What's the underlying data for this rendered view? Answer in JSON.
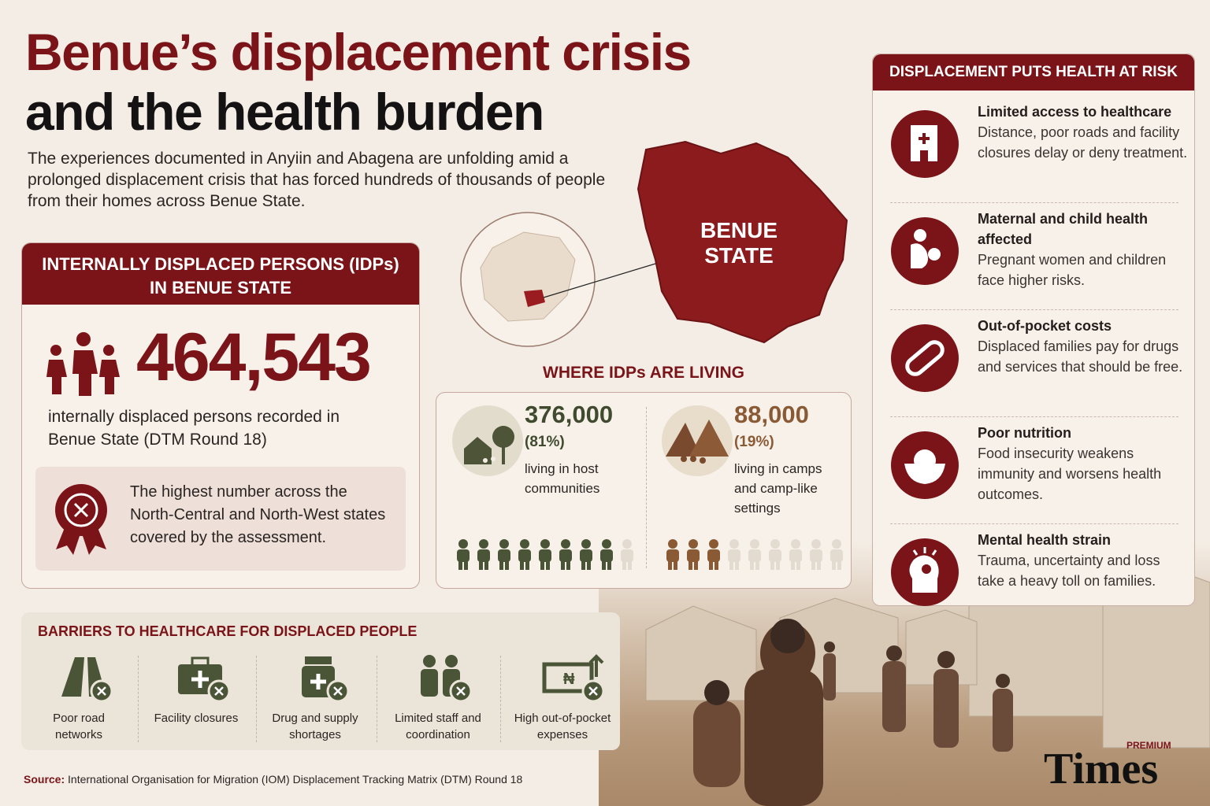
{
  "header": {
    "title_line1": "Benue’s displacement crisis",
    "title_line2": "and the health burden",
    "intro": "The experiences documented in Anyiin and Abagena are unfolding amid a prolonged displacement crisis that has forced hundreds of thousands of people from their homes across Benue State."
  },
  "idp_box": {
    "title_line1": "INTERNALLY DISPLACED PERSONS (IDPs)",
    "title_line2": "IN BENUE STATE",
    "total": "464,543",
    "caption": "internally displaced persons recorded in Benue State (DTM Round 18)",
    "note": "The highest number across the North-Central and North-West states covered by the assessment."
  },
  "map": {
    "label_line1": "BENUE",
    "label_line2": "STATE"
  },
  "living": {
    "title": "WHERE IDPs ARE LIVING",
    "groups": [
      {
        "count": "376,000",
        "share": "(81%)",
        "description": "living in host communities"
      },
      {
        "count": "88,000",
        "share": "(19%)",
        "description": "living in camps and camp-like settings"
      }
    ]
  },
  "barriers": {
    "title": "BARRIERS TO HEALTHCARE FOR DISPLACED PEOPLE",
    "items": [
      "Poor road networks",
      "Facility closures",
      "Drug and supply shortages",
      "Limited staff and coordination",
      "High out-of-pocket expenses"
    ]
  },
  "health": {
    "title": "DISPLACEMENT PUTS HEALTH AT RISK",
    "items": [
      {
        "heading": "Limited access to healthcare",
        "text": "Distance, poor roads and facility closures delay or deny treatment."
      },
      {
        "heading": "Maternal and child health affected",
        "text": "Pregnant women and children face higher risks."
      },
      {
        "heading": "Out-of-pocket costs",
        "text": "Displaced families pay for drugs and services that should be free."
      },
      {
        "heading": "Poor nutrition",
        "text": "Food insecurity weakens immunity and worsens health outcomes."
      },
      {
        "heading": "Mental health strain",
        "text": "Trauma, uncertainty and loss take a heavy toll on families."
      }
    ]
  },
  "source": {
    "label": "Source:",
    "text": "International Organisation for Migration (IOM) Displacement Tracking Matrix (DTM) Round 18"
  },
  "brand": {
    "premium": "PREMIUM",
    "name": "Times"
  }
}
